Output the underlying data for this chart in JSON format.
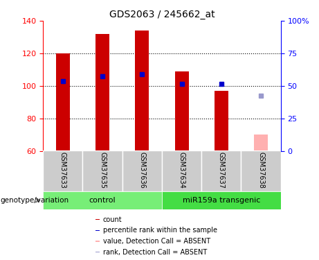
{
  "title": "GDS2063 / 245662_at",
  "samples": [
    "GSM37633",
    "GSM37635",
    "GSM37636",
    "GSM37634",
    "GSM37637",
    "GSM37638"
  ],
  "bar_values": [
    120,
    132,
    134,
    109,
    97,
    null
  ],
  "bar_absent_values": [
    null,
    null,
    null,
    null,
    null,
    70
  ],
  "rank_values": [
    103,
    106,
    107,
    101,
    101,
    null
  ],
  "rank_absent_values": [
    null,
    null,
    null,
    null,
    null,
    94
  ],
  "ylim_left": [
    60,
    140
  ],
  "ylim_right": [
    0,
    100
  ],
  "yticks_left": [
    60,
    80,
    100,
    120,
    140
  ],
  "yticks_right": [
    0,
    25,
    50,
    75,
    100
  ],
  "ytick_right_labels": [
    "0",
    "25",
    "50",
    "75",
    "100%"
  ],
  "bar_color": "#cc0000",
  "bar_absent_color": "#ffb0b0",
  "rank_color": "#0000cc",
  "rank_absent_color": "#9999cc",
  "control_color": "#77ee77",
  "transgenic_color": "#44dd44",
  "sample_bg_color": "#cccccc",
  "bar_width": 0.35,
  "rank_marker_size": 5,
  "absent_marker_size": 4,
  "grid_yticks": [
    80,
    100,
    120
  ],
  "legend_items": [
    {
      "label": "count",
      "color": "#cc0000"
    },
    {
      "label": "percentile rank within the sample",
      "color": "#0000cc"
    },
    {
      "label": "value, Detection Call = ABSENT",
      "color": "#ffb0b0"
    },
    {
      "label": "rank, Detection Call = ABSENT",
      "color": "#9999cc"
    }
  ],
  "control_label": "control",
  "transgenic_label": "miR159a transgenic",
  "genotype_label": "genotype/variation"
}
